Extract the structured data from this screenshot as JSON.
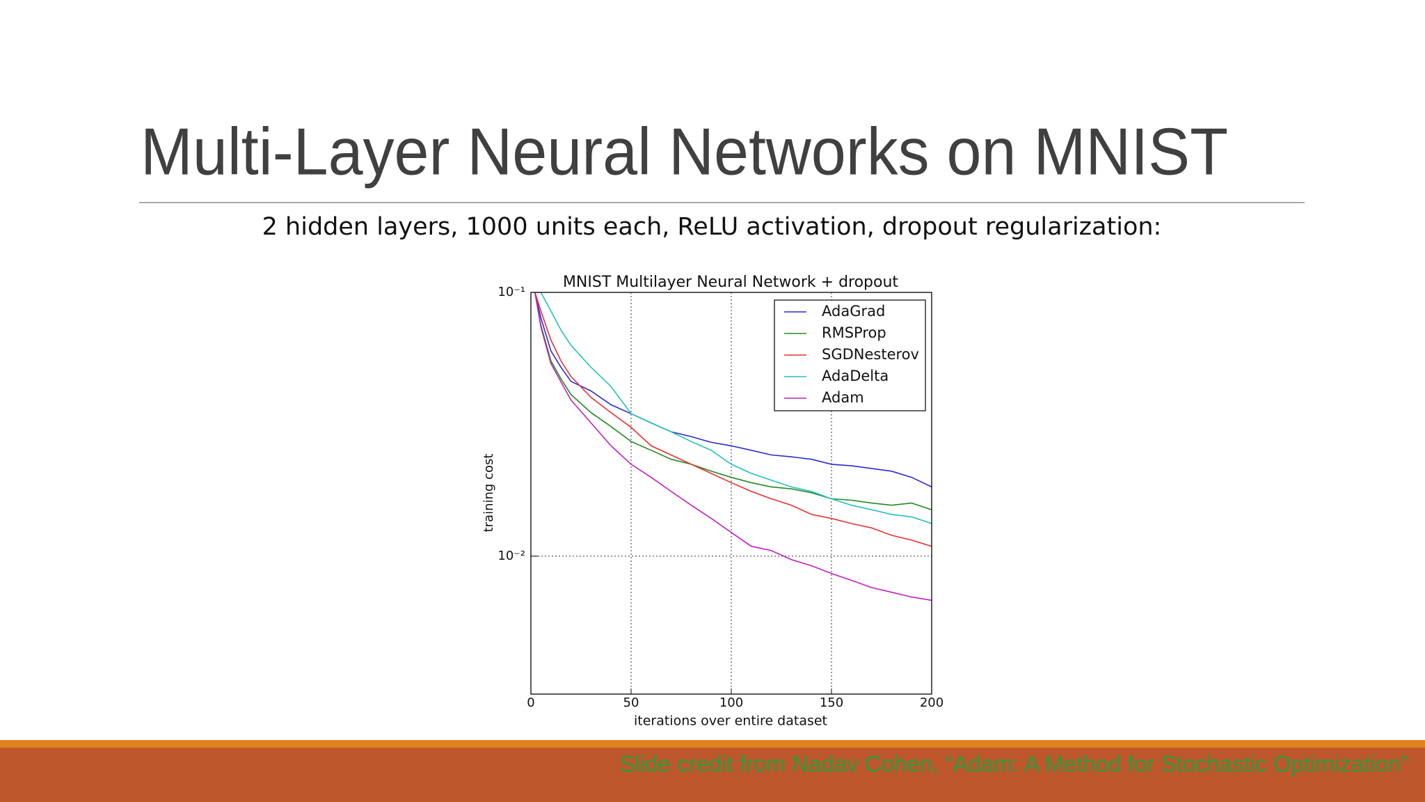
{
  "slide": {
    "title": "Multi-Layer Neural Networks on MNIST",
    "subtitle": "2 hidden layers, 1000 units each, ReLU activation, dropout regularization:",
    "credit": "Slide credit from Nadav Cohen, “Adam: A Method for Stochastic Optimization”"
  },
  "chart_data": {
    "type": "line",
    "title": "MNIST Multilayer Neural Network + dropout",
    "x_label": "iterations over entire dataset",
    "y_label": "training cost",
    "x": [
      2,
      5,
      10,
      15,
      20,
      30,
      40,
      50,
      60,
      70,
      80,
      90,
      100,
      110,
      120,
      130,
      140,
      150,
      160,
      170,
      180,
      190,
      200
    ],
    "series": [
      {
        "name": "AdaGrad",
        "color": "#2a2ad0",
        "values": [
          0.1,
          0.08,
          0.06,
          0.052,
          0.046,
          0.0423,
          0.0375,
          0.0347,
          0.032,
          0.0296,
          0.0284,
          0.027,
          0.0262,
          0.0252,
          0.0242,
          0.0238,
          0.0233,
          0.0223,
          0.022,
          0.0215,
          0.021,
          0.0199,
          0.0183
        ]
      },
      {
        "name": "RMSProp",
        "color": "#228a22",
        "values": [
          0.1,
          0.075,
          0.055,
          0.047,
          0.041,
          0.035,
          0.031,
          0.0272,
          0.0252,
          0.0233,
          0.0223,
          0.021,
          0.0199,
          0.019,
          0.0183,
          0.018,
          0.0174,
          0.0165,
          0.0163,
          0.0159,
          0.0156,
          0.0159,
          0.015
        ]
      },
      {
        "name": "SGDNesterov",
        "color": "#e83030",
        "values": [
          0.1,
          0.085,
          0.066,
          0.055,
          0.048,
          0.04,
          0.035,
          0.0308,
          0.0262,
          0.0242,
          0.0223,
          0.0206,
          0.019,
          0.0176,
          0.0165,
          0.0156,
          0.0144,
          0.0139,
          0.0133,
          0.0128,
          0.012,
          0.0115,
          0.0109
        ]
      },
      {
        "name": "AdaDelta",
        "color": "#22c0c0",
        "values": [
          0.1,
          0.1,
          0.085,
          0.072,
          0.063,
          0.052,
          0.044,
          0.0347,
          0.032,
          0.0296,
          0.0272,
          0.0252,
          0.0223,
          0.0206,
          0.0194,
          0.0183,
          0.0176,
          0.0165,
          0.0156,
          0.015,
          0.0144,
          0.0141,
          0.0133
        ]
      },
      {
        "name": "Adam",
        "color": "#c020c0",
        "values": [
          0.1,
          0.0739,
          0.0537,
          0.0458,
          0.0391,
          0.032,
          0.0262,
          0.0223,
          0.0199,
          0.0176,
          0.0156,
          0.0139,
          0.0123,
          0.0109,
          0.0105,
          0.0097,
          0.0092,
          0.0086,
          0.0081,
          0.0076,
          0.0073,
          0.007,
          0.0068
        ]
      }
    ],
    "xlim": [
      0,
      200
    ],
    "xticks": [
      0,
      50,
      100,
      150,
      200
    ],
    "ylim": [
      0.003,
      0.1
    ],
    "yticks": [
      {
        "value": 0.1,
        "label": "10⁻¹"
      },
      {
        "value": 0.01,
        "label": "10⁻²"
      }
    ],
    "log_y": true,
    "grid": true,
    "legend": "upper right"
  }
}
